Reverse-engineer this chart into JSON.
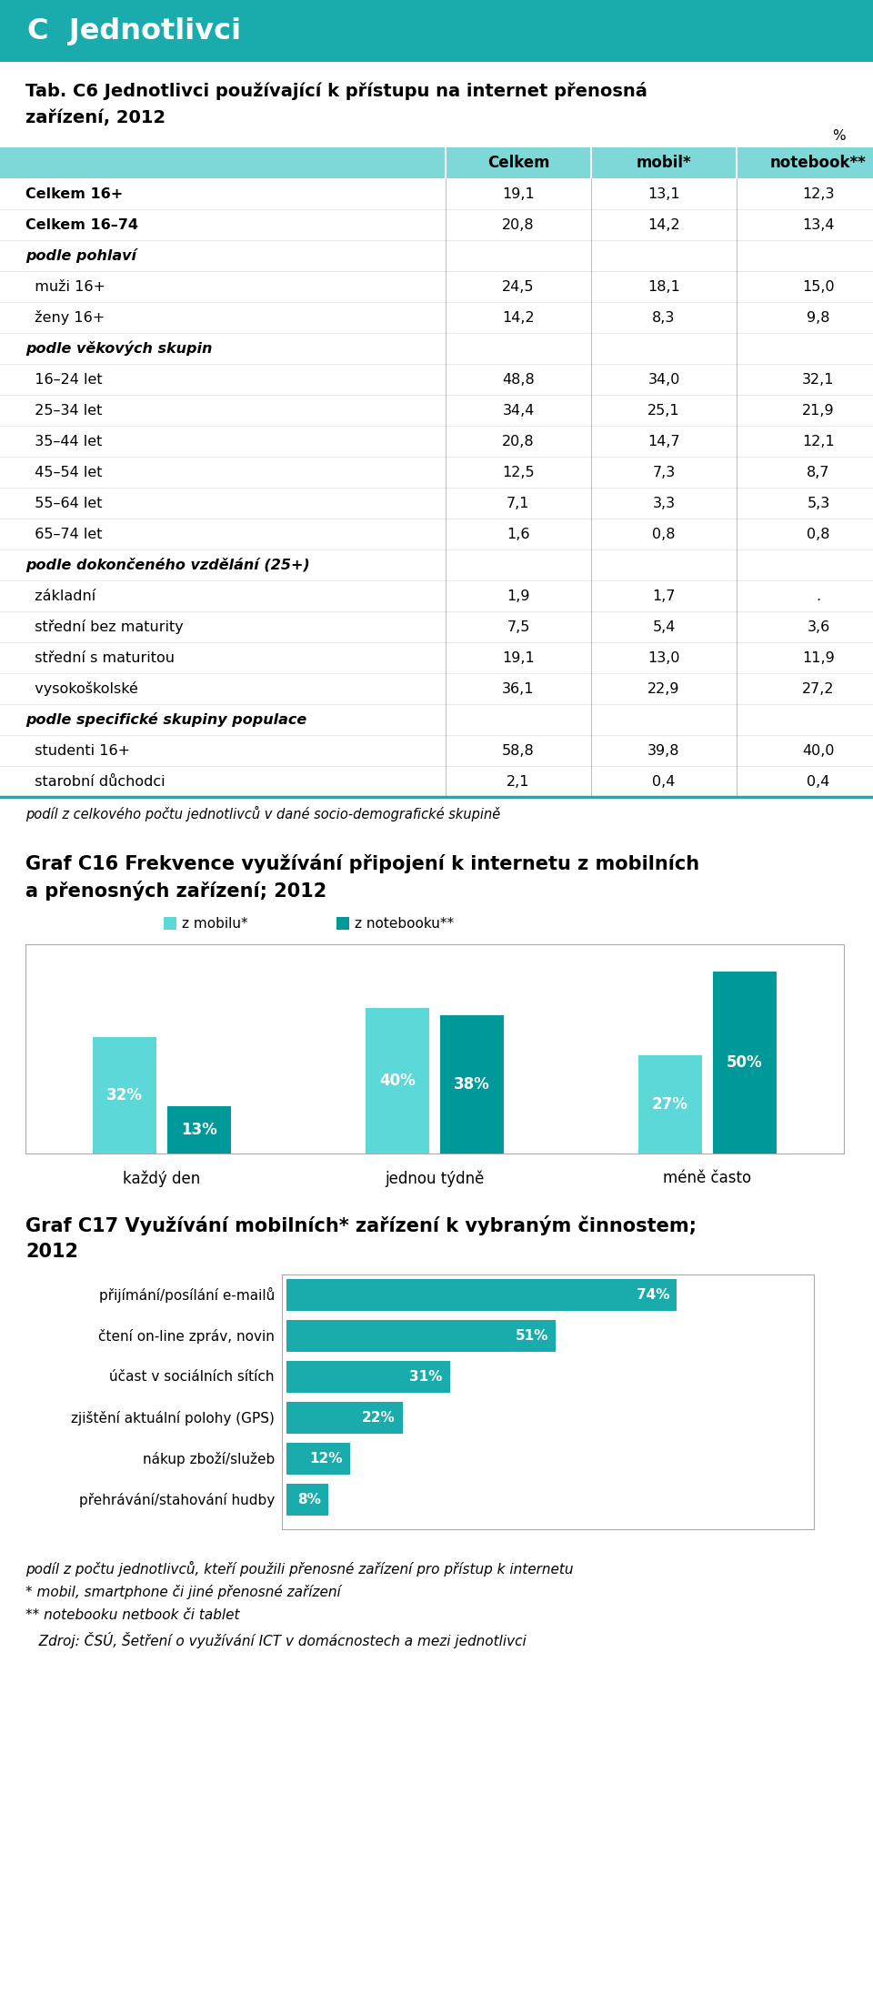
{
  "header_text": "C  Jednotlivci",
  "header_bg": "#1AACAC",
  "header_text_color": "#FFFFFF",
  "table_title_line1": "Tab. C6 Jednotlivci používající k přístupu na internet přenosná",
  "table_title_line2": "zařízení, 2012",
  "table_pct_label": "%",
  "table_col_headers": [
    "Celkem",
    "mobil*",
    "notebook**"
  ],
  "table_col_header_bg": "#7ED8D8",
  "table_rows": [
    {
      "label": "Celkem 16+",
      "indent": false,
      "bold": true,
      "italic": false,
      "values": [
        "19,1",
        "13,1",
        "12,3"
      ]
    },
    {
      "label": "Celkem 16–74",
      "indent": false,
      "bold": true,
      "italic": false,
      "values": [
        "20,8",
        "14,2",
        "13,4"
      ]
    },
    {
      "label": "podle pohlaví",
      "indent": false,
      "bold": true,
      "italic": true,
      "values": [
        "",
        "",
        ""
      ]
    },
    {
      "label": "  muži 16+",
      "indent": true,
      "bold": false,
      "italic": false,
      "values": [
        "24,5",
        "18,1",
        "15,0"
      ]
    },
    {
      "label": "  ženy 16+",
      "indent": true,
      "bold": false,
      "italic": false,
      "values": [
        "14,2",
        "8,3",
        "9,8"
      ]
    },
    {
      "label": "podle věkových skupin",
      "indent": false,
      "bold": true,
      "italic": true,
      "values": [
        "",
        "",
        ""
      ]
    },
    {
      "label": "  16–24 let",
      "indent": true,
      "bold": false,
      "italic": false,
      "values": [
        "48,8",
        "34,0",
        "32,1"
      ]
    },
    {
      "label": "  25–34 let",
      "indent": true,
      "bold": false,
      "italic": false,
      "values": [
        "34,4",
        "25,1",
        "21,9"
      ]
    },
    {
      "label": "  35–44 let",
      "indent": true,
      "bold": false,
      "italic": false,
      "values": [
        "20,8",
        "14,7",
        "12,1"
      ]
    },
    {
      "label": "  45–54 let",
      "indent": true,
      "bold": false,
      "italic": false,
      "values": [
        "12,5",
        "7,3",
        "8,7"
      ]
    },
    {
      "label": "  55–64 let",
      "indent": true,
      "bold": false,
      "italic": false,
      "values": [
        "7,1",
        "3,3",
        "5,3"
      ]
    },
    {
      "label": "  65–74 let",
      "indent": true,
      "bold": false,
      "italic": false,
      "values": [
        "1,6",
        "0,8",
        "0,8"
      ]
    },
    {
      "label": "podle dokončeného vzdělání (25+)",
      "indent": false,
      "bold": true,
      "italic": true,
      "values": [
        "",
        "",
        ""
      ]
    },
    {
      "label": "  základní",
      "indent": true,
      "bold": false,
      "italic": false,
      "values": [
        "1,9",
        "1,7",
        "."
      ]
    },
    {
      "label": "  střední bez maturity",
      "indent": true,
      "bold": false,
      "italic": false,
      "values": [
        "7,5",
        "5,4",
        "3,6"
      ]
    },
    {
      "label": "  střední s maturitou",
      "indent": true,
      "bold": false,
      "italic": false,
      "values": [
        "19,1",
        "13,0",
        "11,9"
      ]
    },
    {
      "label": "  vysokoškolské",
      "indent": true,
      "bold": false,
      "italic": false,
      "values": [
        "36,1",
        "22,9",
        "27,2"
      ]
    },
    {
      "label": "podle specifické skupiny populace",
      "indent": false,
      "bold": true,
      "italic": true,
      "values": [
        "",
        "",
        ""
      ]
    },
    {
      "label": "  studenti 16+",
      "indent": true,
      "bold": false,
      "italic": false,
      "values": [
        "58,8",
        "39,8",
        "40,0"
      ]
    },
    {
      "label": "  starobní důchodci",
      "indent": true,
      "bold": false,
      "italic": false,
      "values": [
        "2,1",
        "0,4",
        "0,4"
      ]
    }
  ],
  "table_footnote": "podíl z celkového počtu jednotlivců v dané socio-demografické skupině",
  "table_bottom_color": "#1AACAC",
  "chart1_title_line1": "Graf C16 Frekvence využívání připojení k internetu z mobilních",
  "chart1_title_line2": "a přenosných zařízení; 2012",
  "chart1_legend": [
    "z mobilu*",
    "z notebooku**"
  ],
  "chart1_legend_colors": [
    "#5DD8D8",
    "#009999"
  ],
  "chart1_categories": [
    "každý den",
    "jednou týdně",
    "méně často"
  ],
  "chart1_series1": [
    32,
    40,
    27
  ],
  "chart1_series2": [
    13,
    38,
    50
  ],
  "chart1_label_color": "white",
  "chart1_border_color": "#AAAAAA",
  "chart2_title_line1": "Graf C17 Využívání mobilních* zařízení k vybraným činnostem;",
  "chart2_title_line2": "2012",
  "chart2_categories": [
    "přijímání/posílání e-mailů",
    "čtení on-line zpráv, novin",
    "účast v sociálních sítích",
    "zjištění aktuální polohy (GPS)",
    "nákup zboží/služeb",
    "přehrávání/stahování hudby"
  ],
  "chart2_values": [
    74,
    51,
    31,
    22,
    12,
    8
  ],
  "chart2_bar_color": "#1AACAC",
  "chart2_border_color": "#AAAAAA",
  "footnote1": "podíl z počtu jednotlivců, kteří použili přenosné zařízení pro přístup k internetu",
  "footnote2": "* mobil, smartphone či jiné přenosné zařízení",
  "footnote3": "** notebooku netbook či tablet",
  "footnote4": "   Zdroj: ČSÚ, Šetření o využívání ICT v domácnostech a mezi jednotlivci"
}
